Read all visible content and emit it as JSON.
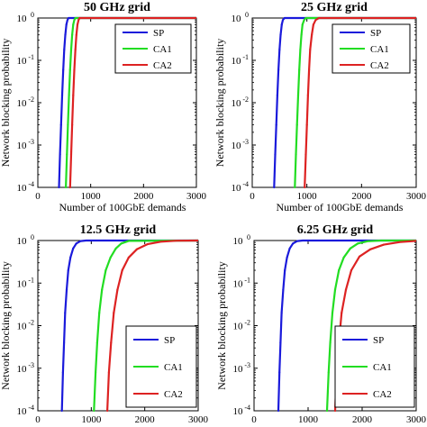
{
  "figure": {
    "ylabel": "Network blocking probability",
    "xlabel": "Number of 100GbE demands"
  },
  "colors": {
    "SP": "#1a1adb",
    "CA1": "#22dd22",
    "CA2": "#dd2222"
  },
  "chart_data": [
    {
      "type": "line",
      "title": "50 GHz grid",
      "xlabel": "Number of 100GbE demands",
      "ylabel": "Network blocking probability",
      "xlim": [
        0,
        3000
      ],
      "ylim": [
        0.0001,
        1
      ],
      "yscale": "log",
      "xticks": [
        0,
        1000,
        2000,
        3000
      ],
      "yticks": [
        {
          "base": "10",
          "exp": "-4",
          "v": 0.0001
        },
        {
          "base": "10",
          "exp": "-3",
          "v": 0.001
        },
        {
          "base": "10",
          "exp": "-2",
          "v": 0.01
        },
        {
          "base": "10",
          "exp": "-1",
          "v": 0.1
        },
        {
          "base": "10",
          "exp": "0",
          "v": 1
        }
      ],
      "legend": "top-right",
      "series": [
        {
          "name": "SP",
          "x": [
            400,
            420,
            440,
            460,
            480,
            500,
            520,
            540,
            560,
            580,
            3000
          ],
          "y": [
            0.0001,
            0.0006,
            0.003,
            0.015,
            0.06,
            0.18,
            0.4,
            0.7,
            0.9,
            1,
            1
          ]
        },
        {
          "name": "CA1",
          "x": [
            530,
            550,
            570,
            590,
            610,
            630,
            650,
            670,
            690,
            710,
            3000
          ],
          "y": [
            0.0001,
            0.0006,
            0.003,
            0.015,
            0.06,
            0.18,
            0.4,
            0.7,
            0.9,
            1,
            1
          ]
        },
        {
          "name": "CA2",
          "x": [
            610,
            630,
            650,
            670,
            690,
            710,
            730,
            750,
            770,
            790,
            3000
          ],
          "y": [
            0.0001,
            0.0006,
            0.003,
            0.015,
            0.06,
            0.18,
            0.4,
            0.7,
            0.9,
            1,
            1
          ]
        }
      ]
    },
    {
      "type": "line",
      "title": "25 GHz grid",
      "xlabel": "Number of 100GbE demands",
      "ylabel": "Network blocking probability",
      "xlim": [
        0,
        3000
      ],
      "ylim": [
        0.0001,
        1
      ],
      "yscale": "log",
      "xticks": [
        0,
        1000,
        2000,
        3000
      ],
      "yticks": [
        {
          "base": "10",
          "exp": "-4",
          "v": 0.0001
        },
        {
          "base": "10",
          "exp": "-3",
          "v": 0.001
        },
        {
          "base": "10",
          "exp": "-2",
          "v": 0.01
        },
        {
          "base": "10",
          "exp": "-1",
          "v": 0.1
        },
        {
          "base": "10",
          "exp": "0",
          "v": 1
        }
      ],
      "legend": "top-right",
      "series": [
        {
          "name": "SP",
          "x": [
            400,
            420,
            440,
            460,
            480,
            500,
            520,
            540,
            560,
            590,
            3000
          ],
          "y": [
            0.0001,
            0.0006,
            0.003,
            0.015,
            0.06,
            0.18,
            0.4,
            0.7,
            0.9,
            1,
            1
          ]
        },
        {
          "name": "CA1",
          "x": [
            780,
            800,
            820,
            840,
            860,
            880,
            900,
            920,
            950,
            980,
            3000
          ],
          "y": [
            0.0001,
            0.0006,
            0.003,
            0.015,
            0.06,
            0.18,
            0.4,
            0.7,
            0.9,
            1,
            1
          ]
        },
        {
          "name": "CA2",
          "x": [
            960,
            980,
            1000,
            1020,
            1040,
            1060,
            1090,
            1120,
            1160,
            1220,
            3000
          ],
          "y": [
            0.0001,
            0.0006,
            0.003,
            0.015,
            0.06,
            0.18,
            0.4,
            0.7,
            0.9,
            1,
            1
          ]
        }
      ]
    },
    {
      "type": "line",
      "title": "12.5 GHz grid",
      "xlabel": "Number of 100GbE demands",
      "ylabel": "Network blocking probability",
      "xlim": [
        0,
        3000
      ],
      "ylim": [
        0.0001,
        1
      ],
      "yscale": "log",
      "xticks": [
        0,
        1000,
        2000,
        3000
      ],
      "yticks": [
        {
          "base": "10",
          "exp": "-4",
          "v": 0.0001
        },
        {
          "base": "10",
          "exp": "-3",
          "v": 0.001
        },
        {
          "base": "10",
          "exp": "-2",
          "v": 0.01
        },
        {
          "base": "10",
          "exp": "-1",
          "v": 0.1
        },
        {
          "base": "10",
          "exp": "0",
          "v": 1
        }
      ],
      "legend": "bottom-right",
      "series": [
        {
          "name": "SP",
          "x": [
            450,
            470,
            490,
            510,
            540,
            570,
            610,
            660,
            720,
            800,
            900,
            3000
          ],
          "y": [
            0.0001,
            0.0008,
            0.004,
            0.02,
            0.07,
            0.2,
            0.4,
            0.65,
            0.85,
            0.97,
            1,
            1
          ]
        },
        {
          "name": "CA1",
          "x": [
            1050,
            1080,
            1110,
            1150,
            1200,
            1270,
            1360,
            1460,
            1560,
            1700,
            3000
          ],
          "y": [
            0.0001,
            0.0008,
            0.004,
            0.02,
            0.07,
            0.2,
            0.4,
            0.65,
            0.85,
            0.98,
            1
          ]
        },
        {
          "name": "CA2",
          "x": [
            1300,
            1330,
            1370,
            1420,
            1490,
            1580,
            1700,
            1850,
            2050,
            2300,
            2600,
            3000
          ],
          "y": [
            0.0001,
            0.0008,
            0.004,
            0.02,
            0.07,
            0.2,
            0.4,
            0.62,
            0.82,
            0.94,
            0.99,
            1
          ]
        }
      ]
    },
    {
      "type": "line",
      "title": "6.25 GHz grid",
      "xlabel": "Number of 100GbE demands",
      "ylabel": "Network blocking probability",
      "xlim": [
        0,
        3000
      ],
      "ylim": [
        0.0001,
        1
      ],
      "yscale": "log",
      "xticks": [
        0,
        1000,
        2000,
        3000
      ],
      "yticks": [
        {
          "base": "10",
          "exp": "-4",
          "v": 0.0001
        },
        {
          "base": "10",
          "exp": "-3",
          "v": 0.001
        },
        {
          "base": "10",
          "exp": "-2",
          "v": 0.01
        },
        {
          "base": "10",
          "exp": "-1",
          "v": 0.1
        },
        {
          "base": "10",
          "exp": "0",
          "v": 1
        }
      ],
      "legend": "bottom-right",
      "series": [
        {
          "name": "SP",
          "x": [
            450,
            470,
            490,
            510,
            540,
            570,
            610,
            660,
            720,
            800,
            900,
            3000
          ],
          "y": [
            0.0001,
            0.0008,
            0.004,
            0.02,
            0.07,
            0.2,
            0.4,
            0.65,
            0.85,
            0.97,
            1,
            1
          ]
        },
        {
          "name": "CA1",
          "x": [
            1350,
            1380,
            1410,
            1450,
            1500,
            1570,
            1660,
            1780,
            1920,
            2100,
            2350,
            3000
          ],
          "y": [
            0.0001,
            0.0008,
            0.004,
            0.02,
            0.07,
            0.2,
            0.4,
            0.65,
            0.85,
            0.96,
            1,
            1
          ]
        },
        {
          "name": "CA2",
          "x": [
            1500,
            1530,
            1570,
            1620,
            1700,
            1800,
            1950,
            2150,
            2400,
            2700,
            3000
          ],
          "y": [
            0.0001,
            0.0008,
            0.004,
            0.02,
            0.07,
            0.2,
            0.42,
            0.62,
            0.8,
            0.92,
            0.98
          ]
        }
      ]
    }
  ]
}
